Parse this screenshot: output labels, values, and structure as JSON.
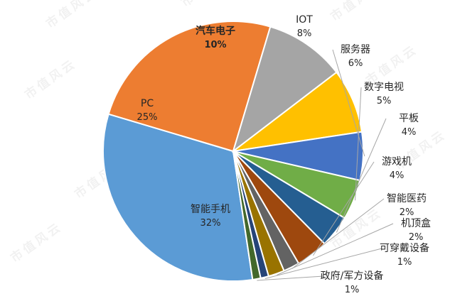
{
  "watermark": "市值风云",
  "chart_data": {
    "type": "pie",
    "title": "",
    "legend": "none",
    "unit": "%",
    "slices": [
      {
        "label": "智能手机",
        "value": 32,
        "value_label": "32%",
        "color": "#5b9bd5"
      },
      {
        "label": "PC",
        "value": 25,
        "value_label": "25%",
        "color": "#ed7d31"
      },
      {
        "label": "汽车电子",
        "value": 10,
        "value_label": "10%",
        "color": "#a5a5a5"
      },
      {
        "label": "IOT",
        "value": 8,
        "value_label": "8%",
        "color": "#ffc000"
      },
      {
        "label": "服务器",
        "value": 6,
        "value_label": "6%",
        "color": "#4472c4"
      },
      {
        "label": "数字电视",
        "value": 5,
        "value_label": "5%",
        "color": "#70ad47"
      },
      {
        "label": "平板",
        "value": 4,
        "value_label": "4%",
        "color": "#255e91"
      },
      {
        "label": "游戏机",
        "value": 4,
        "value_label": "4%",
        "color": "#9e480e"
      },
      {
        "label": "智能医药",
        "value": 2,
        "value_label": "2%",
        "color": "#636363"
      },
      {
        "label": "机顶盒",
        "value": 2,
        "value_label": "2%",
        "color": "#997300"
      },
      {
        "label": "可穿戴设备",
        "value": 1,
        "value_label": "1%",
        "color": "#264478"
      },
      {
        "label": "政府/军方设备",
        "value": 1,
        "value_label": "1%",
        "color": "#43682b"
      }
    ]
  }
}
